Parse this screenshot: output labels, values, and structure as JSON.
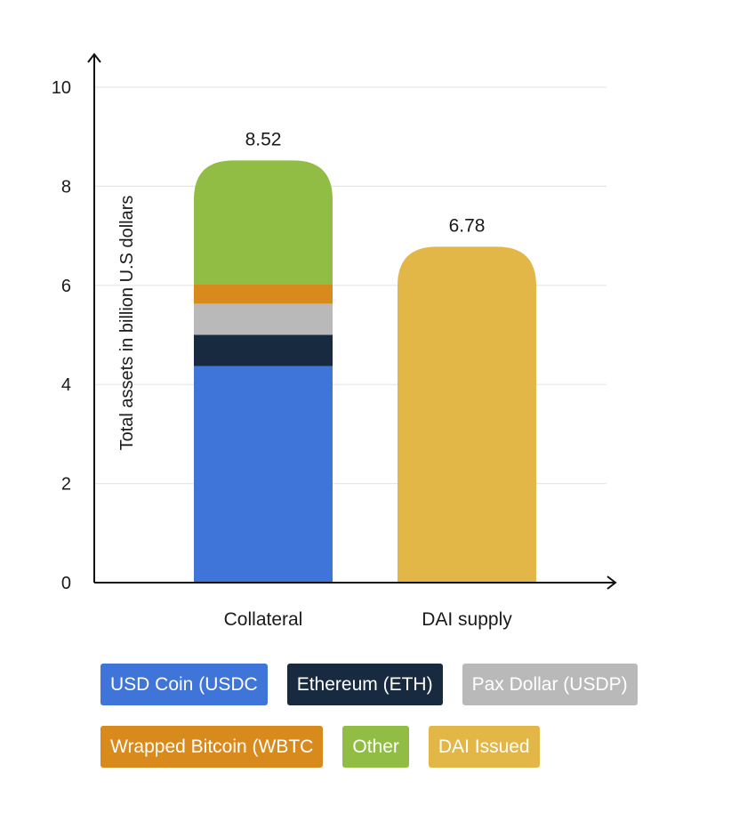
{
  "chart_data": {
    "type": "bar",
    "stacked": true,
    "categories": [
      "Collateral",
      "DAI supply"
    ],
    "ylabel": "Total assets in billion U.S dollars",
    "xlabel": "",
    "ylim": [
      0,
      10
    ],
    "yticks": [
      0,
      2,
      4,
      6,
      8,
      10
    ],
    "grid": true,
    "series": [
      {
        "name": "USD Coin (USDC",
        "color": "#3f74d8",
        "values": [
          4.37,
          0
        ]
      },
      {
        "name": "Ethereum (ETH)",
        "color": "#172a3f",
        "values": [
          0.63,
          0
        ]
      },
      {
        "name": "Pax Dollar (USDP)",
        "color": "#b9b9b9",
        "values": [
          0.63,
          0
        ]
      },
      {
        "name": "Wrapped Bitcoin (WBTC",
        "color": "#d88a1c",
        "values": [
          0.4,
          0
        ]
      },
      {
        "name": "Other",
        "color": "#92bd44",
        "values": [
          2.49,
          0
        ]
      },
      {
        "name": "DAI Issued",
        "color": "#e2b747",
        "values": [
          0,
          6.78
        ]
      }
    ],
    "totals": [
      "8.52",
      "6.78"
    ],
    "legend_position": "bottom"
  }
}
